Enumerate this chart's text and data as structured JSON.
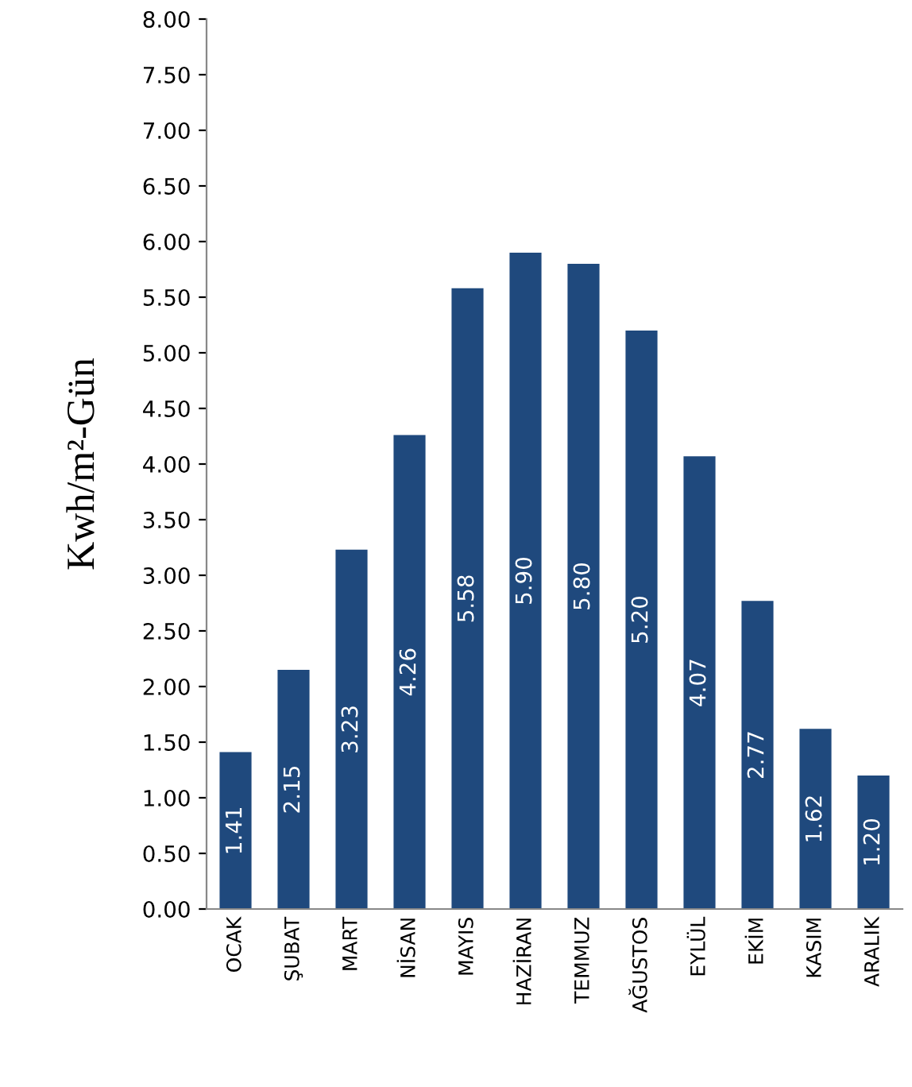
{
  "chart_data": {
    "type": "bar",
    "ylabel": "Kwh/m²-Gün",
    "categories": [
      "OCAK",
      "ŞUBAT",
      "MART",
      "NİSAN",
      "MAYIS",
      "HAZİRAN",
      "TEMMUZ",
      "AĞUSTOS",
      "EYLÜL",
      "EKİM",
      "KASIM",
      "ARALIK"
    ],
    "values": [
      1.41,
      2.15,
      3.23,
      4.26,
      5.58,
      5.9,
      5.8,
      5.2,
      4.07,
      2.77,
      1.62,
      1.2
    ],
    "value_labels": [
      "1.41",
      "2.15",
      "3.23",
      "4.26",
      "5.58",
      "5.90",
      "5.80",
      "5.20",
      "4.07",
      "2.77",
      "1.62",
      "1.20"
    ],
    "color": "#1f497d",
    "ylim": [
      0,
      8
    ],
    "yticks": [
      {
        "value": 0,
        "label": "0.00"
      },
      {
        "value": 0.5,
        "label": "0.50"
      },
      {
        "value": 1,
        "label": "1.00"
      },
      {
        "value": 1.5,
        "label": "1.50"
      },
      {
        "value": 2,
        "label": "2.00"
      },
      {
        "value": 2.5,
        "label": "2.50"
      },
      {
        "value": 3,
        "label": "3.00"
      },
      {
        "value": 3.5,
        "label": "3.50"
      },
      {
        "value": 4,
        "label": "4.00"
      },
      {
        "value": 4.5,
        "label": "4.50"
      },
      {
        "value": 5,
        "label": "5.00"
      },
      {
        "value": 5.5,
        "label": "5.50"
      },
      {
        "value": 6,
        "label": "6.00"
      },
      {
        "value": 6.5,
        "label": "6.50"
      },
      {
        "value": 7,
        "label": "7.00"
      },
      {
        "value": 7.5,
        "label": "7.50"
      },
      {
        "value": 8,
        "label": "8.00"
      }
    ],
    "grid": false
  }
}
